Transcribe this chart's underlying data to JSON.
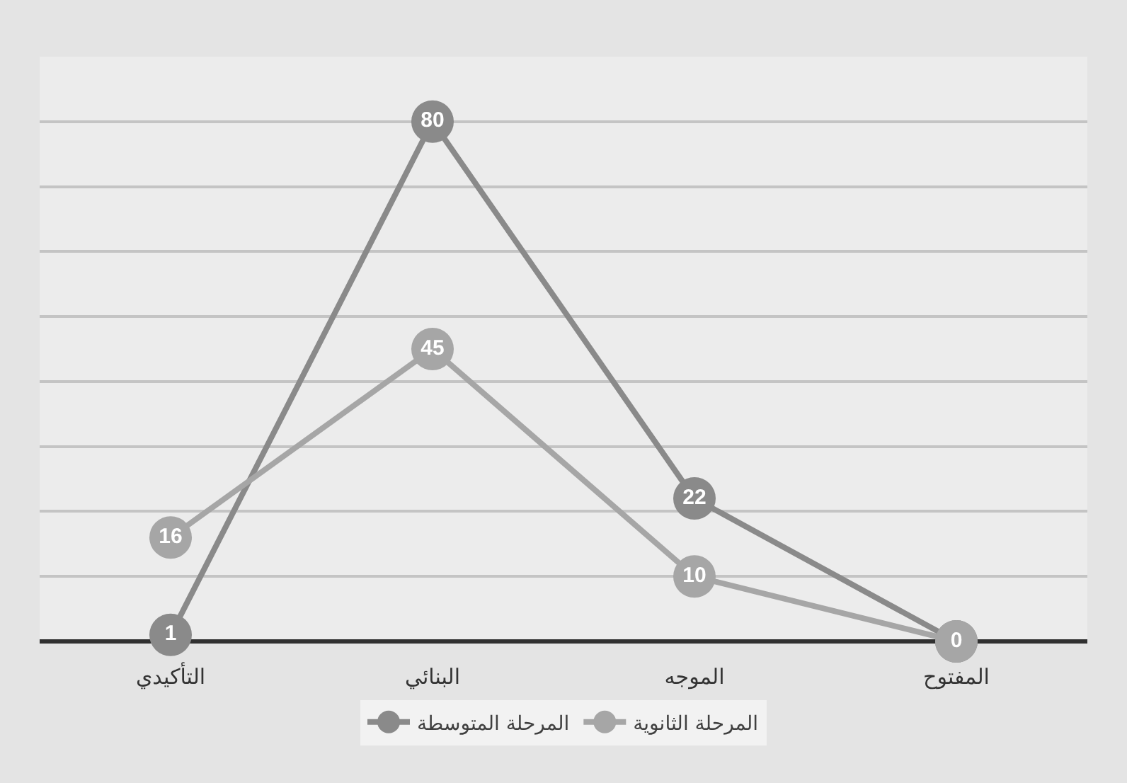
{
  "chart_data": {
    "type": "line",
    "categories": [
      "التأكيدي",
      "البنائي",
      "الموجه",
      "المفتوح"
    ],
    "series": [
      {
        "name": "المرحلة المتوسطة",
        "color": "#8a8a8a",
        "values": [
          1,
          80,
          22,
          0
        ],
        "value_labels": [
          "1",
          "80",
          "22",
          null
        ]
      },
      {
        "name": "المرحلة الثانوية",
        "color": "#a6a6a6",
        "values": [
          16,
          45,
          10,
          0
        ],
        "value_labels": [
          "16",
          "45",
          "10",
          "0"
        ]
      }
    ],
    "ylim": [
      0,
      90
    ],
    "yticks": [
      {
        "value": 0,
        "label": null
      },
      {
        "value": 10,
        "label": null
      },
      {
        "value": 20,
        "label": null
      },
      {
        "value": 30,
        "label": null
      },
      {
        "value": 40,
        "label": null
      },
      {
        "value": 50,
        "label": null
      },
      {
        "value": 60,
        "label": null
      },
      {
        "value": 70,
        "label": null
      },
      {
        "value": 80,
        "label": null
      },
      {
        "value": 90,
        "label": null
      }
    ],
    "tick_labels": "x",
    "grid": "y",
    "legend": "bottom",
    "marker": "circle",
    "line_style": "solid"
  }
}
